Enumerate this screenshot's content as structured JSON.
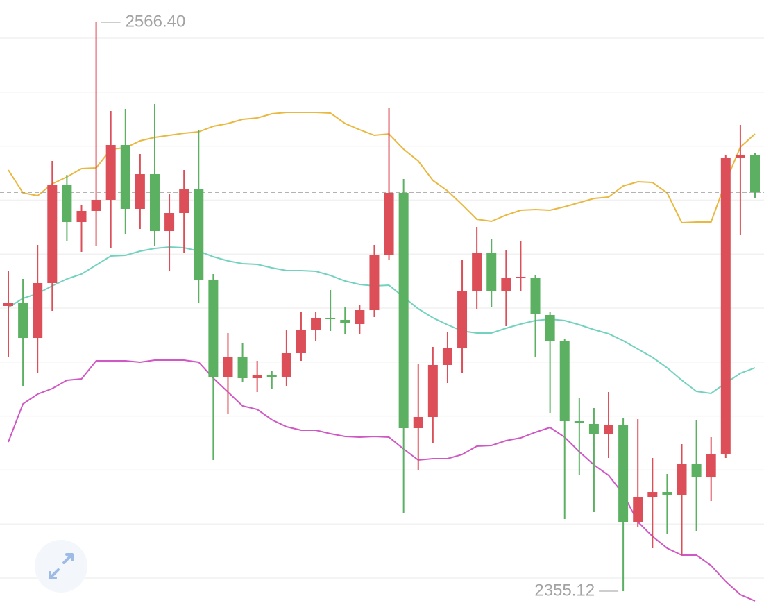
{
  "chart_data": {
    "type": "candlestick",
    "up_color": "#dc4f58",
    "down_color": "#5bb062",
    "open": [
      2461.02,
      2462.05,
      2449.16,
      2469.52,
      2505.85,
      2492.19,
      2496.32,
      2500.44,
      2520.79,
      2497.09,
      2509.97,
      2488.84,
      2495.54,
      2504.3,
      2470.55,
      2434.48,
      2441.95,
      2434.22,
      2435.25,
      2434.74,
      2443.5,
      2452.26,
      2456.64,
      2455.86,
      2454.32,
      2459.47,
      2480.08,
      2503.02,
      2415.67,
      2419.79,
      2439.12,
      2445.3,
      2466.43,
      2480.86,
      2466.68,
      2471.32,
      2471.58,
      2457.67,
      2448.13,
      2418.25,
      2417.22,
      2413.35,
      2416.7,
      2380.88,
      2390.16,
      2391.96,
      2390.94,
      2402.53,
      2397.37,
      2406.14,
      2516.16,
      2517.19
    ],
    "high": [
      2474.16,
      2471.07,
      2483.69,
      2514.87,
      2509.71,
      2498.64,
      2566.4,
      2533.42,
      2534.19,
      2517.44,
      2536.0,
      2502.5,
      2511.52,
      2526.46,
      2472.87,
      2450.97,
      2447.1,
      2440.66,
      2436.8,
      2452.26,
      2458.7,
      2458.7,
      2466.94,
      2460.5,
      2461.27,
      2483.69,
      2534.71,
      2508.17,
      2439.37,
      2445.82,
      2451.48,
      2478.02,
      2490.39,
      2485.75,
      2481.89,
      2484.98,
      2472.35,
      2458.7,
      2448.91,
      2427.01,
      2423.14,
      2429.07,
      2419.28,
      2419.02,
      2404.59,
      2398.66,
      2409.74,
      2418.76,
      2412.32,
      2516.93,
      2528.27,
      2517.96
    ],
    "low": [
      2441.95,
      2431.13,
      2436.28,
      2459.21,
      2485.24,
      2481.11,
      2483.18,
      2482.66,
      2487.81,
      2489.62,
      2483.18,
      2474.16,
      2480.6,
      2462.05,
      2403.82,
      2420.82,
      2432.93,
      2429.07,
      2430.36,
      2431.13,
      2440.66,
      2447.88,
      2451.74,
      2450.45,
      2450.45,
      2456.89,
      2478.02,
      2383.98,
      2400.21,
      2410.26,
      2432.42,
      2436.28,
      2459.99,
      2460.76,
      2453.54,
      2466.43,
      2441.95,
      2421.34,
      2381.92,
      2398.15,
      2384.49,
      2404.59,
      2355.12,
      2378.82,
      2371.09,
      2376.25,
      2368.52,
      2377.54,
      2388.61,
      2404.59,
      2487.56,
      2501.21
    ],
    "close": [
      2462.05,
      2449.16,
      2469.52,
      2505.85,
      2492.19,
      2496.32,
      2500.44,
      2520.79,
      2497.09,
      2509.97,
      2488.84,
      2495.54,
      2504.3,
      2470.55,
      2434.48,
      2441.95,
      2434.22,
      2435.25,
      2434.74,
      2443.5,
      2452.26,
      2456.64,
      2456.12,
      2454.58,
      2459.47,
      2480.08,
      2503.02,
      2415.67,
      2419.79,
      2439.12,
      2445.3,
      2466.43,
      2480.86,
      2466.68,
      2471.32,
      2471.84,
      2458.18,
      2448.13,
      2418.25,
      2417.73,
      2413.35,
      2416.7,
      2380.88,
      2390.16,
      2391.96,
      2390.94,
      2402.53,
      2397.37,
      2406.14,
      2516.16,
      2517.19,
      2503.27
    ],
    "bands": [
      {
        "color": "#e9b840",
        "values": [
          2511.52,
          2503.02,
          2501.98,
          2506.37,
          2508.94,
          2512.03,
          2512.29,
          2519.25,
          2519.76,
          2522.34,
          2523.63,
          2524.4,
          2525.17,
          2525.69,
          2527.75,
          2528.78,
          2530.33,
          2530.84,
          2532.39,
          2532.9,
          2532.9,
          2532.9,
          2532.65,
          2528.78,
          2526.46,
          2524.4,
          2524.92,
          2519.25,
          2514.87,
          2507.65,
          2503.79,
          2498.64,
          2493.22,
          2492.45,
          2494.77,
          2496.57,
          2496.83,
          2496.57,
          2497.86,
          2499.41,
          2500.95,
          2501.47,
          2505.59,
          2507.14,
          2506.88,
          2503.02,
          2491.94,
          2492.19,
          2492.19,
          2507.14,
          2520.02,
          2524.92
        ]
      },
      {
        "color": "#72d2bf",
        "values": [
          2460.5,
          2463.85,
          2465.65,
          2468.49,
          2471.07,
          2472.87,
          2476.22,
          2479.57,
          2479.83,
          2481.37,
          2482.4,
          2482.92,
          2482.66,
          2481.37,
          2479.31,
          2477.76,
          2476.73,
          2476.48,
          2475.19,
          2474.16,
          2474.16,
          2473.9,
          2472.35,
          2470.29,
          2469.0,
          2468.49,
          2468.75,
          2464.37,
          2459.99,
          2456.64,
          2454.06,
          2451.74,
          2450.97,
          2450.97,
          2452.77,
          2454.32,
          2455.61,
          2456.12,
          2455.61,
          2454.06,
          2452.26,
          2450.71,
          2448.13,
          2445.04,
          2441.95,
          2438.09,
          2433.45,
          2429.32,
          2428.55,
          2432.42,
          2436.02,
          2438.09
        ]
      },
      {
        "color": "#cf58c4",
        "values": [
          2410.52,
          2424.69,
          2428.29,
          2430.36,
          2433.45,
          2433.96,
          2440.66,
          2440.66,
          2440.66,
          2440.15,
          2440.92,
          2440.92,
          2440.92,
          2440.15,
          2434.22,
          2429.07,
          2423.91,
          2422.63,
          2418.76,
          2416.18,
          2414.9,
          2414.9,
          2413.61,
          2412.58,
          2412.32,
          2412.58,
          2412.32,
          2407.94,
          2403.82,
          2404.33,
          2404.33,
          2405.88,
          2408.97,
          2409.23,
          2411.03,
          2412.06,
          2414.12,
          2415.93,
          2412.32,
          2406.91,
          2402.01,
          2398.15,
          2391.19,
          2380.88,
          2375.47,
          2371.09,
          2368.52,
          2368.52,
          2364.65,
          2358.73,
          2353.83,
          2351.51
        ]
      }
    ],
    "high_label": "2566.40",
    "low_label": "2355.12",
    "last_price_line": true
  }
}
